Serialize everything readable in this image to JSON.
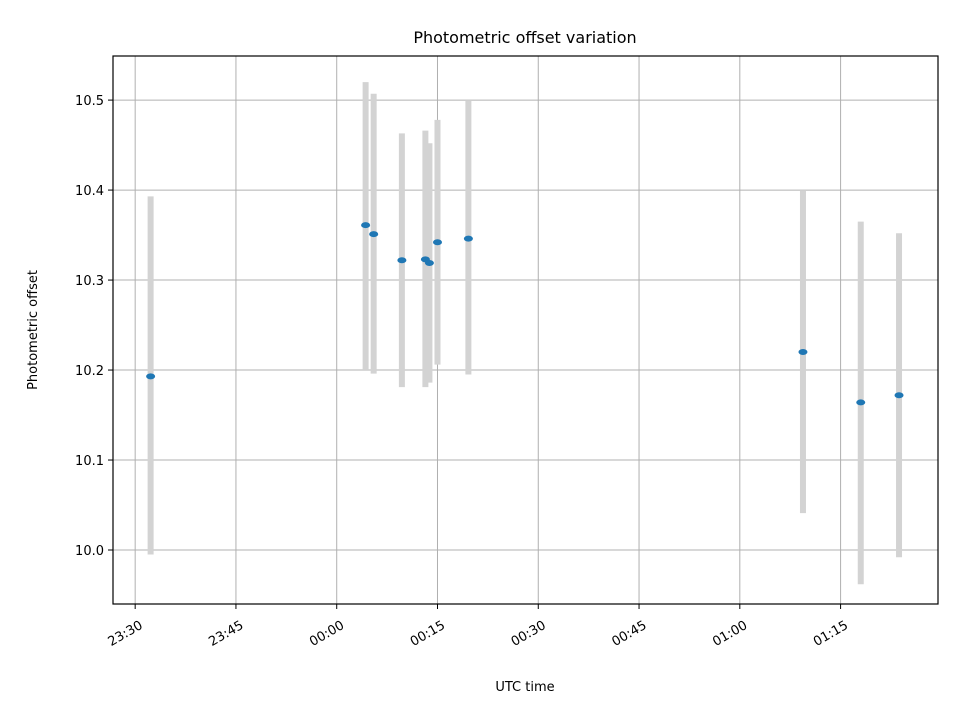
{
  "chart_data": {
    "type": "scatter",
    "title": "Photometric offset variation",
    "xlabel": "UTC time",
    "ylabel": "Photometric offset",
    "grid": true,
    "x_ticks": [
      "23:30",
      "23:45",
      "00:00",
      "00:15",
      "00:30",
      "00:45",
      "01:00",
      "01:15"
    ],
    "x_tick_minutes": [
      0,
      15,
      30,
      45,
      60,
      75,
      90,
      105
    ],
    "xlim_minutes": [
      -3.3,
      119.5
    ],
    "y_ticks": [
      10.0,
      10.1,
      10.2,
      10.3,
      10.4,
      10.5
    ],
    "ylim": [
      9.94,
      10.549
    ],
    "point_color": "#1f77b4",
    "errorbar_color": "#d3d3d3",
    "series": [
      {
        "points": [
          {
            "x": 2.3,
            "y": 10.193,
            "low": 9.995,
            "high": 10.393
          },
          {
            "x": 34.3,
            "y": 10.361,
            "low": 10.201,
            "high": 10.52
          },
          {
            "x": 35.5,
            "y": 10.351,
            "low": 10.196,
            "high": 10.507
          },
          {
            "x": 39.7,
            "y": 10.322,
            "low": 10.181,
            "high": 10.463
          },
          {
            "x": 43.2,
            "y": 10.323,
            "low": 10.181,
            "high": 10.466
          },
          {
            "x": 43.8,
            "y": 10.319,
            "low": 10.186,
            "high": 10.452
          },
          {
            "x": 45.0,
            "y": 10.342,
            "low": 10.206,
            "high": 10.478
          },
          {
            "x": 49.6,
            "y": 10.346,
            "low": 10.195,
            "high": 10.499
          },
          {
            "x": 99.4,
            "y": 10.22,
            "low": 10.041,
            "high": 10.399
          },
          {
            "x": 108.0,
            "y": 10.164,
            "low": 9.962,
            "high": 10.365
          },
          {
            "x": 113.7,
            "y": 10.172,
            "low": 9.992,
            "high": 10.352
          }
        ]
      }
    ]
  }
}
